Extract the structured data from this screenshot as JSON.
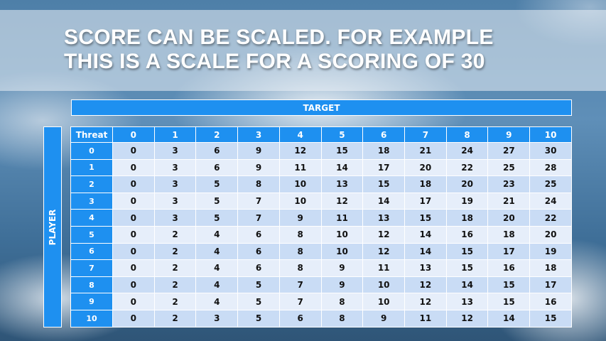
{
  "slide": {
    "title_lines": [
      "SCORE CAN BE SCALED. FOR EXAMPLE",
      "THIS IS A SCALE FOR A SCORING OF 30"
    ],
    "target_label": "TARGET",
    "player_label": "PLAYER"
  },
  "table": {
    "corner_label": "Threat",
    "columns": [
      "0",
      "1",
      "2",
      "3",
      "4",
      "5",
      "6",
      "7",
      "8",
      "9",
      "10"
    ],
    "rows": [
      {
        "label": "0",
        "values": [
          "0",
          "3",
          "6",
          "9",
          "12",
          "15",
          "18",
          "21",
          "24",
          "27",
          "30"
        ]
      },
      {
        "label": "1",
        "values": [
          "0",
          "3",
          "6",
          "9",
          "11",
          "14",
          "17",
          "20",
          "22",
          "25",
          "28"
        ]
      },
      {
        "label": "2",
        "values": [
          "0",
          "3",
          "5",
          "8",
          "10",
          "13",
          "15",
          "18",
          "20",
          "23",
          "25"
        ]
      },
      {
        "label": "3",
        "values": [
          "0",
          "3",
          "5",
          "7",
          "10",
          "12",
          "14",
          "17",
          "19",
          "21",
          "24"
        ]
      },
      {
        "label": "4",
        "values": [
          "0",
          "3",
          "5",
          "7",
          "9",
          "11",
          "13",
          "15",
          "18",
          "20",
          "22"
        ]
      },
      {
        "label": "5",
        "values": [
          "0",
          "2",
          "4",
          "6",
          "8",
          "10",
          "12",
          "14",
          "16",
          "18",
          "20"
        ]
      },
      {
        "label": "6",
        "values": [
          "0",
          "2",
          "4",
          "6",
          "8",
          "10",
          "12",
          "14",
          "15",
          "17",
          "19"
        ]
      },
      {
        "label": "7",
        "values": [
          "0",
          "2",
          "4",
          "6",
          "8",
          "9",
          "11",
          "13",
          "15",
          "16",
          "18"
        ]
      },
      {
        "label": "8",
        "values": [
          "0",
          "2",
          "4",
          "5",
          "7",
          "9",
          "10",
          "12",
          "14",
          "15",
          "17"
        ]
      },
      {
        "label": "9",
        "values": [
          "0",
          "2",
          "4",
          "5",
          "7",
          "8",
          "10",
          "12",
          "13",
          "15",
          "16"
        ]
      },
      {
        "label": "10",
        "values": [
          "0",
          "2",
          "3",
          "5",
          "6",
          "8",
          "9",
          "11",
          "12",
          "14",
          "15"
        ]
      }
    ]
  },
  "colors": {
    "header_blue": "#1e90f0",
    "row_dark": "#c9dcf5",
    "row_light": "#e6eefa"
  }
}
